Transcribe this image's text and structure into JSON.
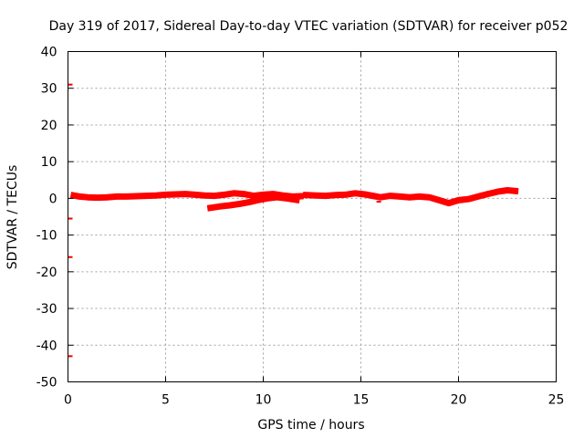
{
  "chart_data": {
    "type": "scatter",
    "title": "Day 319 of 2017, Sidereal Day-to-day VTEC variation (SDTVAR) for receiver p052",
    "xlabel": "GPS time / hours",
    "ylabel": "SDTVAR / TECUs",
    "xlim": [
      0,
      25
    ],
    "ylim": [
      -50,
      40
    ],
    "xticks": [
      0,
      5,
      10,
      15,
      20,
      25
    ],
    "yticks": [
      -50,
      -40,
      -30,
      -20,
      -10,
      0,
      10,
      20,
      30,
      40
    ],
    "grid": true,
    "series": [
      {
        "name": "SDTVAR",
        "color": "#ff0000",
        "segments": [
          {
            "x": [
              0.3,
              0.6,
              1.0,
              1.5,
              2.0,
              2.5,
              3.0,
              3.5,
              4.0,
              4.5,
              5.0,
              5.5,
              6.0,
              6.5,
              7.0,
              7.5,
              8.0,
              8.5,
              9.0,
              9.5,
              10.0,
              10.5,
              11.0,
              11.5,
              11.9
            ],
            "y": [
              0.8,
              0.5,
              0.3,
              0.2,
              0.3,
              0.5,
              0.5,
              0.6,
              0.7,
              0.8,
              1.0,
              1.1,
              1.2,
              1.0,
              0.8,
              0.7,
              1.0,
              1.4,
              1.2,
              0.7,
              1.0,
              1.2,
              0.8,
              0.5,
              0.6
            ]
          },
          {
            "x": [
              7.3,
              7.8,
              8.3,
              8.8,
              9.3,
              9.8,
              10.2,
              10.7,
              11.2,
              11.7
            ],
            "y": [
              -2.6,
              -2.2,
              -1.9,
              -1.5,
              -1.0,
              -0.4,
              0.0,
              0.3,
              0.0,
              -0.4
            ]
          },
          {
            "x": [
              12.2,
              12.7,
              13.2,
              13.7,
              14.2,
              14.7,
              15.2,
              15.7,
              16.0,
              16.5,
              17.0,
              17.5,
              18.0,
              18.5,
              19.0,
              19.5,
              20.0,
              20.5,
              21.0,
              21.5,
              22.0,
              22.5,
              22.9
            ],
            "y": [
              0.9,
              0.8,
              0.7,
              0.9,
              1.0,
              1.4,
              1.1,
              0.6,
              0.3,
              0.7,
              0.5,
              0.3,
              0.5,
              0.3,
              -0.5,
              -1.3,
              -0.5,
              -0.2,
              0.5,
              1.2,
              1.8,
              2.2,
              2.0
            ]
          },
          {
            "x": [
              15.8
            ],
            "y": [
              -0.9
            ]
          },
          {
            "x": [
              0.0
            ],
            "y": [
              31.0
            ]
          },
          {
            "x": [
              0.0
            ],
            "y": [
              -5.5
            ]
          },
          {
            "x": [
              0.0
            ],
            "y": [
              -16.0
            ]
          },
          {
            "x": [
              0.0
            ],
            "y": [
              -43.0
            ]
          }
        ]
      }
    ]
  }
}
